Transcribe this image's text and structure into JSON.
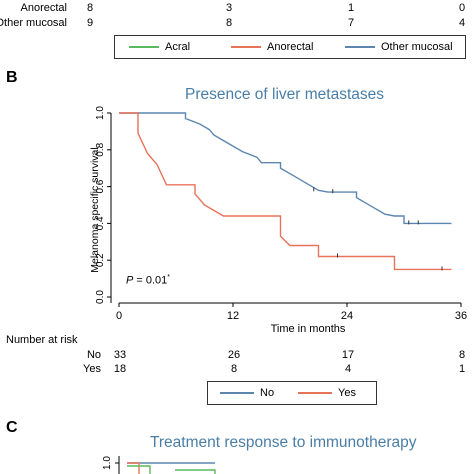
{
  "colors": {
    "acral": "#5cb85c",
    "anorectal": "#e8735a",
    "mucosal": "#5b86b0",
    "no": "#5b86b0",
    "yes": "#e8735a",
    "title": "#4a7ea6"
  },
  "top_table": {
    "rows": [
      {
        "label": "Anorectal",
        "values": [
          "8",
          "3",
          "1",
          "0"
        ]
      },
      {
        "label": "Other mucosal",
        "values": [
          "9",
          "8",
          "7",
          "4"
        ]
      }
    ]
  },
  "legend_a": {
    "items": [
      "Acral",
      "Anorectal",
      "Other mucosal"
    ]
  },
  "panel_b": {
    "letter": "B",
    "p_label": "P",
    "p_value": "= 0.01",
    "p_mark": "*",
    "risk_title": "Number at risk",
    "risk_rows": [
      {
        "label": "No",
        "values": [
          "33",
          "26",
          "17",
          "8"
        ]
      },
      {
        "label": "Yes",
        "values": [
          "18",
          "8",
          "4",
          "1"
        ]
      }
    ],
    "legend": [
      "No",
      "Yes"
    ]
  },
  "chart_data": {
    "type": "line",
    "title": "Presence of liver metastases",
    "xlabel": "Time in months",
    "ylabel": "Melanoma specific survival",
    "xlim": [
      0,
      36
    ],
    "ylim": [
      0,
      1
    ],
    "xticks": [
      "0",
      "12",
      "24",
      "36"
    ],
    "yticks": [
      "0.0",
      "0.2",
      "0.4",
      "0.6",
      "0.8",
      "1.0"
    ],
    "series": [
      {
        "name": "No",
        "steps": [
          [
            0,
            1.0
          ],
          [
            7,
            1.0
          ],
          [
            7,
            0.97
          ],
          [
            8.5,
            0.94
          ],
          [
            9.5,
            0.91
          ],
          [
            10,
            0.88
          ],
          [
            11,
            0.85
          ],
          [
            12,
            0.82
          ],
          [
            13,
            0.79
          ],
          [
            14.5,
            0.76
          ],
          [
            15,
            0.73
          ],
          [
            17,
            0.73
          ],
          [
            17,
            0.7
          ],
          [
            18,
            0.67
          ],
          [
            19,
            0.64
          ],
          [
            20,
            0.61
          ],
          [
            21,
            0.58
          ],
          [
            22,
            0.57
          ],
          [
            25,
            0.57
          ],
          [
            25,
            0.54
          ],
          [
            26,
            0.51
          ],
          [
            27,
            0.48
          ],
          [
            28,
            0.45
          ],
          [
            29,
            0.44
          ],
          [
            30,
            0.44
          ],
          [
            30,
            0.4
          ],
          [
            35,
            0.4
          ]
        ],
        "censor": [
          [
            20.5,
            0.58
          ],
          [
            22.5,
            0.57
          ],
          [
            30.5,
            0.4
          ],
          [
            31.5,
            0.4
          ]
        ]
      },
      {
        "name": "Yes",
        "steps": [
          [
            0,
            1.0
          ],
          [
            2,
            1.0
          ],
          [
            2,
            0.89
          ],
          [
            3,
            0.78
          ],
          [
            4,
            0.72
          ],
          [
            5,
            0.61
          ],
          [
            8,
            0.61
          ],
          [
            8,
            0.56
          ],
          [
            9,
            0.5
          ],
          [
            11,
            0.44
          ],
          [
            17,
            0.44
          ],
          [
            17,
            0.33
          ],
          [
            18,
            0.28
          ],
          [
            21,
            0.28
          ],
          [
            21,
            0.22
          ],
          [
            29,
            0.22
          ],
          [
            29,
            0.15
          ],
          [
            35,
            0.15
          ]
        ],
        "censor": [
          [
            23,
            0.22
          ],
          [
            34,
            0.15
          ]
        ]
      }
    ]
  },
  "panel_c": {
    "letter": "C",
    "title": "Treatment response to immunotherapy",
    "ytick": "1.0"
  }
}
